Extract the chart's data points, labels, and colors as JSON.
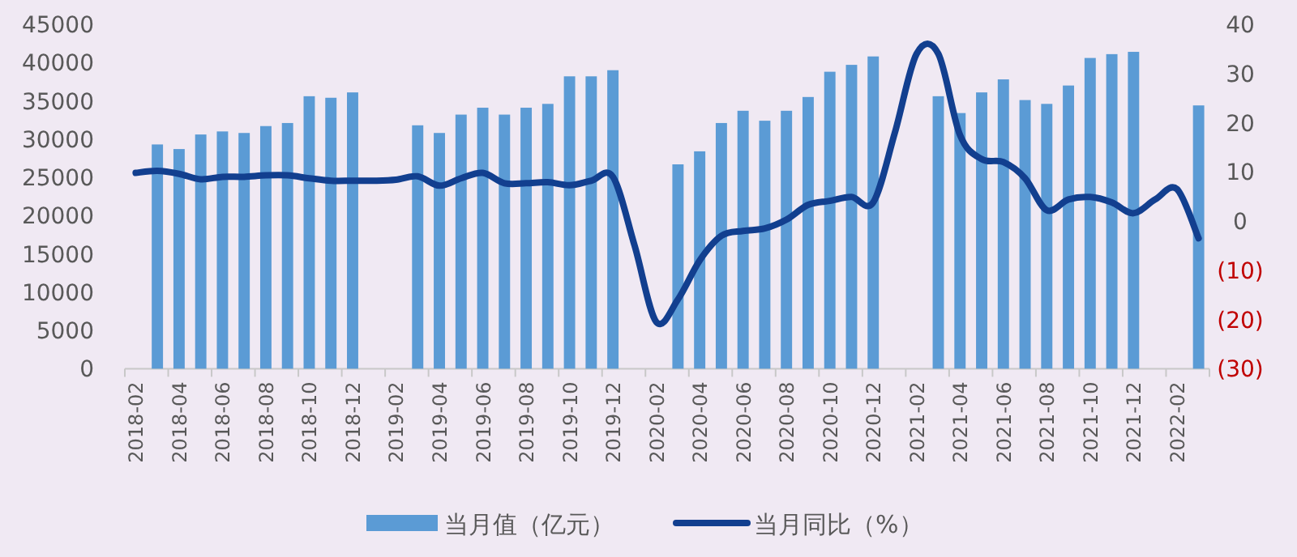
{
  "chart_data": {
    "type": "bar",
    "categories": [
      "2018-02",
      null,
      "2018-04",
      null,
      "2018-06",
      null,
      "2018-08",
      null,
      "2018-10",
      null,
      "2018-12",
      null,
      "2019-02",
      null,
      "2019-04",
      null,
      "2019-06",
      null,
      "2019-08",
      null,
      "2019-10",
      null,
      "2019-12",
      null,
      "2020-02",
      null,
      "2020-04",
      null,
      "2020-06",
      null,
      "2020-08",
      null,
      "2020-10",
      null,
      "2020-12",
      null,
      "2021-02",
      null,
      "2021-04",
      null,
      "2021-06",
      null,
      "2021-08",
      null,
      "2021-10",
      null,
      "2021-12",
      null,
      "2022-02",
      null
    ],
    "series": [
      {
        "name": "当月值（亿元）",
        "color": "#5b9bd5",
        "values": [
          null,
          29300,
          28700,
          30600,
          31000,
          30800,
          31700,
          32100,
          35600,
          35400,
          36100,
          null,
          null,
          31800,
          30800,
          33200,
          34100,
          33200,
          34100,
          34600,
          38200,
          38200,
          39000,
          null,
          null,
          26700,
          28400,
          32100,
          33700,
          32400,
          33700,
          35500,
          38800,
          39700,
          40800,
          null,
          null,
          35600,
          33400,
          36100,
          37800,
          35100,
          34600,
          37000,
          40600,
          41100,
          41400,
          null,
          null,
          34400
        ]
      },
      {
        "name": "当月同比（%）",
        "type": "line",
        "axis": "y2",
        "color": "#123f8f",
        "values": [
          9.8,
          10.2,
          9.6,
          8.5,
          9.0,
          9.0,
          9.3,
          9.3,
          8.7,
          8.2,
          8.2,
          8.2,
          8.4,
          9.1,
          7.2,
          8.7,
          9.8,
          7.7,
          7.7,
          7.9,
          7.3,
          8.2,
          9.0,
          -5,
          -20.5,
          -15.9,
          -8,
          -3,
          -2,
          -1.5,
          0.3,
          3.3,
          4.1,
          4.9,
          3.8,
          18,
          34,
          34,
          17.5,
          12.6,
          12,
          8.7,
          2.2,
          4.4,
          4.9,
          3.8,
          1.6,
          4.4,
          6.5,
          -3.5
        ]
      }
    ],
    "ylim": [
      0,
      45000
    ],
    "yticks": [
      0,
      5000,
      10000,
      15000,
      20000,
      25000,
      30000,
      35000,
      40000,
      45000
    ],
    "y2lim": [
      -30,
      40
    ],
    "y2ticks": [
      {
        "value": -30,
        "label": "(30)"
      },
      {
        "value": -20,
        "label": "(20)"
      },
      {
        "value": -10,
        "label": "(10)"
      },
      0,
      10,
      20,
      30,
      40
    ],
    "legend": "bottom"
  }
}
